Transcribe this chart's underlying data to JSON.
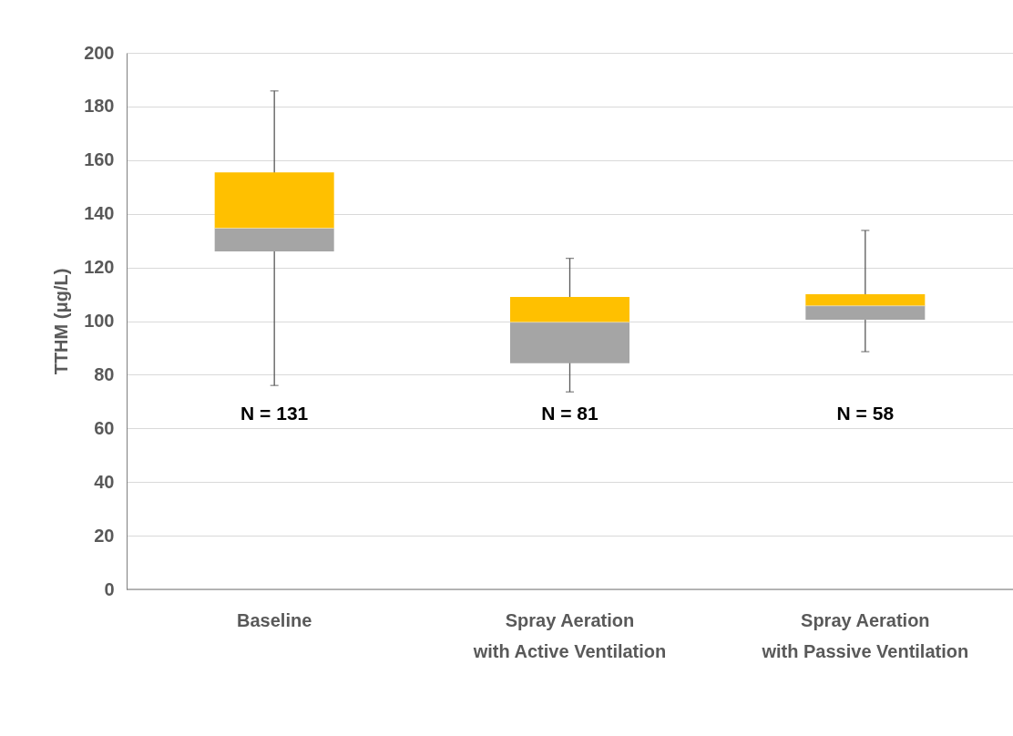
{
  "chart_data": {
    "type": "box",
    "ylabel": "TTHM (μg/L)",
    "categories": [
      "Baseline",
      "Spray Aeration\nwith Active Ventilation",
      "Spray Aeration\nwith Passive Ventilation"
    ],
    "boxes": [
      {
        "low": 76,
        "q1": 126,
        "median": 134.6,
        "q3": 155.4,
        "high": 185.8
      },
      {
        "low": 73.6,
        "q1": 84.3,
        "median": 99.6,
        "q3": 109,
        "high": 123.4
      },
      {
        "low": 88.6,
        "q1": 100.5,
        "median": 105.7,
        "q3": 110,
        "high": 133.8
      }
    ],
    "colors": [
      [
        "#a5a5a5",
        "#ffc000"
      ],
      [
        "#a5a5a5",
        "#ffc000"
      ],
      [
        "#a5a5a5",
        "#ffc000"
      ]
    ],
    "ylim": [
      0,
      200
    ],
    "yticks": [
      0,
      20,
      40,
      60,
      80,
      100,
      120,
      140,
      160,
      180,
      200
    ],
    "grid": "y",
    "annotations": [
      "N = 131",
      "N = 81",
      "N = 58"
    ]
  }
}
